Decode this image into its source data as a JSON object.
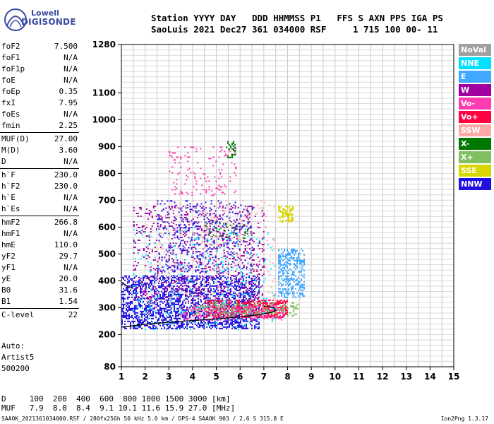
{
  "logo": {
    "line1": "Lowell",
    "line2": "DIGISONDE"
  },
  "header": {
    "line1": "Station YYYY DAY   DDD HHMMSS P1   FFS S AXN PPS IGA PS",
    "line2": "SaoLuis 2021 Dec27 361 034000 RSF     1 715 100 00- 11"
  },
  "params": [
    {
      "k": "foF2",
      "v": "7.500"
    },
    {
      "k": "foF1",
      "v": "N/A"
    },
    {
      "k": "foF1p",
      "v": "N/A"
    },
    {
      "k": "foE",
      "v": "N/A"
    },
    {
      "k": "foEp",
      "v": "0.35"
    },
    {
      "k": "fxI",
      "v": "7.95"
    },
    {
      "k": "foEs",
      "v": "N/A"
    },
    {
      "k": "fmin",
      "v": "2.25"
    },
    {
      "k": "MUF(D)",
      "v": "27.00"
    },
    {
      "k": "M(D)",
      "v": "3.60"
    },
    {
      "k": "D",
      "v": "N/A"
    },
    {
      "k": "h`F",
      "v": "230.0"
    },
    {
      "k": "h`F2",
      "v": "230.0"
    },
    {
      "k": "h`E",
      "v": "N/A"
    },
    {
      "k": "h`Es",
      "v": "N/A"
    },
    {
      "k": "hmF2",
      "v": "266.8"
    },
    {
      "k": "hmF1",
      "v": "N/A"
    },
    {
      "k": "hmE",
      "v": "110.0"
    },
    {
      "k": "yF2",
      "v": "29.7"
    },
    {
      "k": "yF1",
      "v": "N/A"
    },
    {
      "k": "yE",
      "v": "20.0"
    },
    {
      "k": "B0",
      "v": "31.6"
    },
    {
      "k": "B1",
      "v": "1.54"
    },
    {
      "k": "C-level",
      "v": "22"
    }
  ],
  "auto": {
    "line1": "Auto:",
    "line2": "Artist5",
    "line3": "500200"
  },
  "legend": [
    {
      "label": "NoVal",
      "bg": "#a0a0a0",
      "fg": "#ffffff"
    },
    {
      "label": "NNE",
      "bg": "#00e0ff",
      "fg": "#ffffff"
    },
    {
      "label": "E",
      "bg": "#40a8ff",
      "fg": "#ffffff"
    },
    {
      "label": "W",
      "bg": "#a000a0",
      "fg": "#ffffff"
    },
    {
      "label": "Vo-",
      "bg": "#ff3cb0",
      "fg": "#ffffff"
    },
    {
      "label": "Vo+",
      "bg": "#ff0040",
      "fg": "#ffffff"
    },
    {
      "label": "SSW",
      "bg": "#ffa8a8",
      "fg": "#ffffff"
    },
    {
      "label": "X-",
      "bg": "#007800",
      "fg": "#ffffff"
    },
    {
      "label": "X+",
      "bg": "#80c060",
      "fg": "#ffffff"
    },
    {
      "label": "SSE",
      "bg": "#d8d800",
      "fg": "#ffffff"
    },
    {
      "label": "NNW",
      "bg": "#2010e0",
      "fg": "#ffffff"
    }
  ],
  "chart_data": {
    "type": "scatter",
    "xlim": [
      1,
      15
    ],
    "ylim": [
      80,
      1280
    ],
    "x_ticks": [
      "1",
      "2",
      "3",
      "4",
      "5",
      "6",
      "7",
      "8",
      "9",
      "10",
      "11",
      "12",
      "13",
      "14",
      "15"
    ],
    "y_ticks": [
      "80",
      "200",
      "300",
      "400",
      "500",
      "600",
      "700",
      "800",
      "900",
      "1000",
      "1100",
      "1280"
    ],
    "grid": true,
    "trace": [
      [
        1.0,
        228
      ],
      [
        2.0,
        238
      ],
      [
        3.0,
        246
      ],
      [
        4.0,
        252
      ],
      [
        5.0,
        258
      ],
      [
        6.0,
        266
      ],
      [
        6.8,
        274
      ],
      [
        7.3,
        282
      ],
      [
        7.5,
        290
      ],
      [
        7.4,
        300
      ],
      [
        7.0,
        306
      ]
    ],
    "trace_lower": [
      [
        1.0,
        395
      ],
      [
        1.15,
        385
      ],
      [
        1.3,
        376
      ],
      [
        1.5,
        372
      ]
    ],
    "clusters": [
      {
        "series": "NNW",
        "x0": 1.0,
        "x1": 6.8,
        "y0": 220,
        "y1": 420,
        "density": 0.45
      },
      {
        "series": "Vo+",
        "x0": 4.5,
        "x1": 8.0,
        "y0": 262,
        "y1": 330,
        "density": 0.5
      },
      {
        "series": "Vo-",
        "x0": 3.5,
        "x1": 7.8,
        "y0": 255,
        "y1": 310,
        "density": 0.35
      },
      {
        "series": "E",
        "x0": 7.6,
        "x1": 8.7,
        "y0": 340,
        "y1": 520,
        "density": 0.4
      },
      {
        "series": "W",
        "x0": 1.5,
        "x1": 7.0,
        "y0": 330,
        "y1": 680,
        "density": 0.12
      },
      {
        "series": "NNW",
        "x0": 2.5,
        "x1": 6.5,
        "y0": 430,
        "y1": 700,
        "density": 0.12
      },
      {
        "series": "X+",
        "x0": 4.0,
        "x1": 8.4,
        "y0": 270,
        "y1": 320,
        "density": 0.2
      },
      {
        "series": "X-",
        "x0": 4.5,
        "x1": 6.5,
        "y0": 560,
        "y1": 620,
        "density": 0.12
      },
      {
        "series": "SSE",
        "x0": 7.6,
        "x1": 8.2,
        "y0": 620,
        "y1": 680,
        "density": 0.5
      },
      {
        "series": "Vo-",
        "x0": 3.0,
        "x1": 5.8,
        "y0": 720,
        "y1": 900,
        "density": 0.08
      },
      {
        "series": "X-",
        "x0": 5.4,
        "x1": 5.8,
        "y0": 860,
        "y1": 920,
        "density": 0.3
      },
      {
        "series": "NNE",
        "x0": 1.5,
        "x1": 7.5,
        "y0": 220,
        "y1": 600,
        "density": 0.04
      },
      {
        "series": "SSW",
        "x0": 2.0,
        "x1": 7.5,
        "y0": 300,
        "y1": 700,
        "density": 0.04
      }
    ]
  },
  "table": {
    "row1": "D     100  200  400  600  800 1000 1500 3000 [km]",
    "row2": "MUF   7.9  8.0  8.4  9.1 10.1 11.6 15.9 27.0 [MHz]"
  },
  "footer": "SAAOK_2021361034000.RSF / 280fx256h 50 kHz 5.0 km / DPS-4 SAAOK 903 / 2.6 S 315.8 E",
  "version": "Ion2Png 1.3.17"
}
